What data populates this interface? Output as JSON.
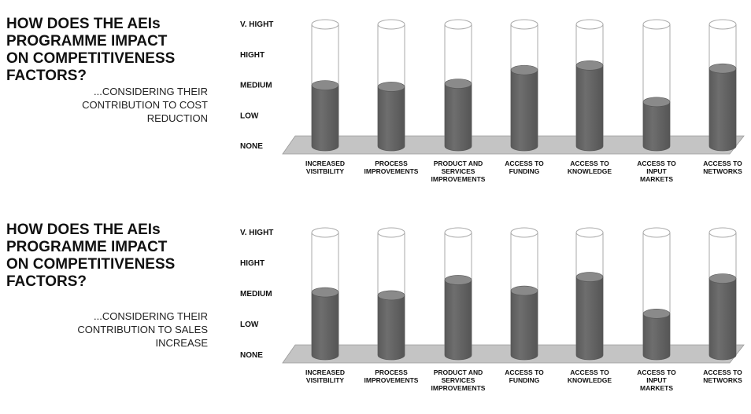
{
  "charts": [
    {
      "title": "HOW DOES THE AEIs\nPROGRAMME IMPACT\nON COMPETITIVENESS\nFACTORS?",
      "subtitle": "...CONSIDERING THEIR\nCONTRIBUTION TO COST\nREDUCTION"
    },
    {
      "title": "HOW DOES THE AEIs\nPROGRAMME IMPACT\nON COMPETITIVENESS\nFACTORS?",
      "subtitle": "...CONSIDERING THEIR\nCONTRIBUTION TO SALES\nINCREASE"
    }
  ],
  "chart_data": [
    {
      "type": "bar",
      "style": "3d-cylinder",
      "categories": [
        [
          "INCREASED",
          "VISITBILITY"
        ],
        [
          "PROCESS",
          "IMPROVEMENTS"
        ],
        [
          "PRODUCT AND",
          "SERVICES",
          "IMPROVEMENTS"
        ],
        [
          "ACCESS TO",
          "FUNDING"
        ],
        [
          "ACCESS TO",
          "KNOWLEDGE"
        ],
        [
          "ACCESS TO",
          "INPUT",
          "MARKETS"
        ],
        [
          "ACCESS TO",
          "NETWORKS"
        ]
      ],
      "y_ticks": [
        "NONE",
        "LOW",
        "MEDIUM",
        "HIGHT",
        "V. HIGHT"
      ],
      "ylim": [
        0,
        4
      ],
      "values": [
        2.0,
        1.95,
        2.05,
        2.5,
        2.65,
        1.45,
        2.55
      ],
      "bar_color": "#6e6e6e",
      "grid": false
    },
    {
      "type": "bar",
      "style": "3d-cylinder",
      "categories": [
        [
          "INCREASED",
          "VISITBILITY"
        ],
        [
          "PROCESS",
          "IMPROVEMENTS"
        ],
        [
          "PRODUCT AND",
          "SERVICES",
          "IMPROVEMENTS"
        ],
        [
          "ACCESS TO",
          "FUNDING"
        ],
        [
          "ACCESS TO",
          "KNOWLEDGE"
        ],
        [
          "ACCESS TO",
          "INPUT",
          "MARKETS"
        ],
        [
          "ACCESS TO",
          "NETWORKS"
        ]
      ],
      "y_ticks": [
        "NONE",
        "LOW",
        "MEDIUM",
        "HIGHT",
        "V. HIGHT"
      ],
      "ylim": [
        0,
        4
      ],
      "values": [
        2.05,
        1.95,
        2.45,
        2.1,
        2.55,
        1.35,
        2.5
      ],
      "bar_color": "#6e6e6e",
      "grid": false
    }
  ]
}
